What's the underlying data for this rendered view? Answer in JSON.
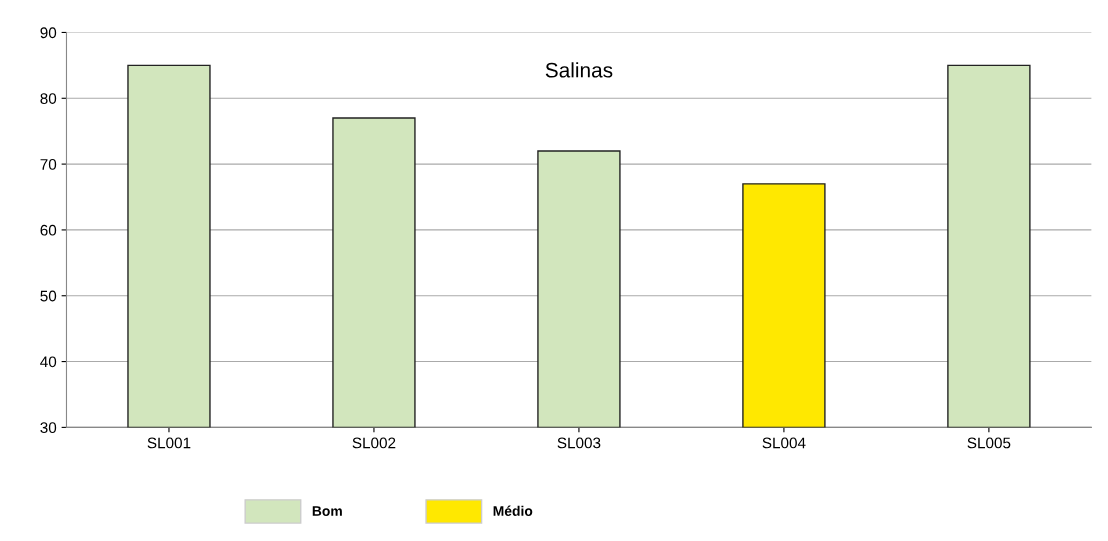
{
  "chart_data": {
    "type": "bar",
    "title": "Salinas",
    "categories": [
      "SL001",
      "SL002",
      "SL003",
      "SL004",
      "SL005"
    ],
    "series": [
      {
        "name": "Bom",
        "color": "#d2e6bd",
        "values": [
          85,
          77,
          72,
          null,
          85
        ]
      },
      {
        "name": "Médio",
        "color": "#ffe800",
        "values": [
          null,
          null,
          null,
          67,
          null
        ]
      }
    ],
    "ylim": [
      30,
      90
    ],
    "yticks": [
      30,
      40,
      50,
      60,
      70,
      80,
      90
    ],
    "grid": "y",
    "legend": "bottom"
  }
}
